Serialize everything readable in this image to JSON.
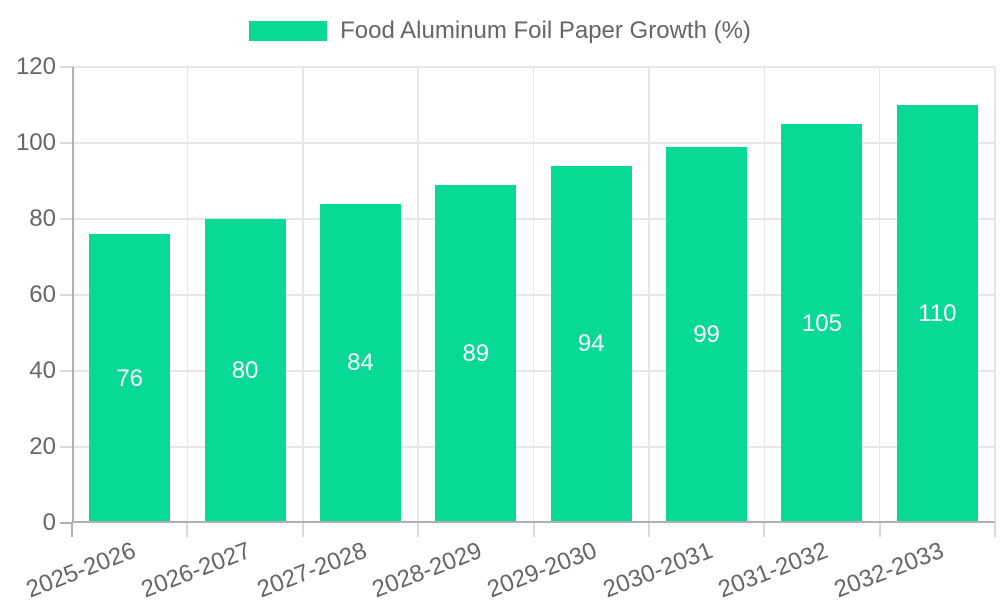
{
  "chart_data": {
    "type": "bar",
    "categories": [
      "2025-2026",
      "2026-2027",
      "2027-2028",
      "2028-2029",
      "2029-2030",
      "2030-2031",
      "2031-2032",
      "2032-2033"
    ],
    "series": [
      {
        "name": "Food Aluminum Foil Paper Growth (%)",
        "values": [
          76,
          80,
          84,
          89,
          94,
          99,
          105,
          110
        ]
      }
    ],
    "value_labels_shown": true,
    "title": "",
    "xlabel": "",
    "ylabel": "",
    "ylim": [
      0,
      120
    ],
    "yticks": [
      0,
      20,
      40,
      60,
      80,
      100,
      120
    ],
    "grid": true,
    "legend_position": "top-center",
    "x_label_rotation_deg": -21,
    "colors": {
      "bar": "#08D995",
      "bar_label": "#ffffff",
      "axis_text": "#666666",
      "grid": "#e6e6e6",
      "axis_line": "#b0b0b0",
      "tick": "#d9d9d9"
    }
  },
  "legend": {
    "items": [
      {
        "label": "Food Aluminum Foil Paper Growth (%)"
      }
    ]
  }
}
